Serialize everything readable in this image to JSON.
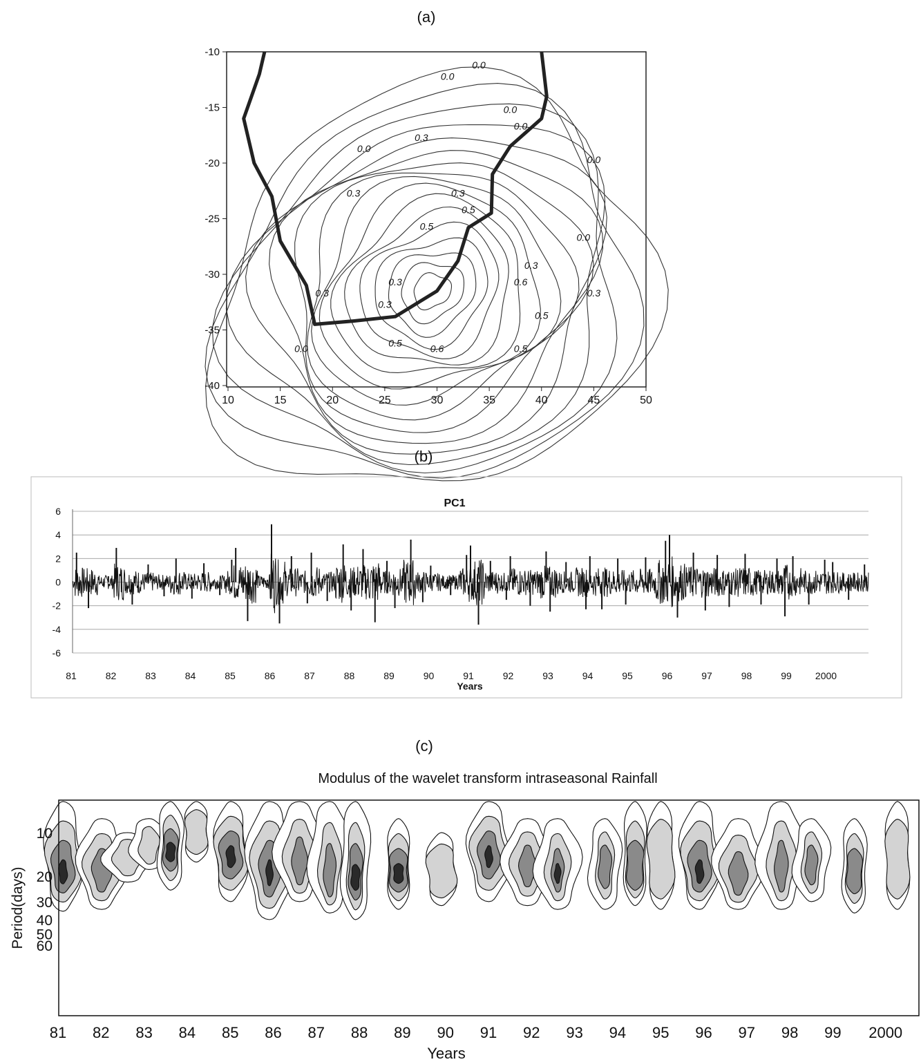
{
  "chart_data": [
    {
      "panel_label": "(a)",
      "type": "contour",
      "xlim": [
        10,
        50
      ],
      "ylim": [
        -40,
        -10
      ],
      "x_ticks": [
        "10",
        "15",
        "20",
        "25",
        "30",
        "35",
        "40",
        "45",
        "50"
      ],
      "y_ticks": [
        "-10",
        "-15",
        "-20",
        "-25",
        "-30",
        "-35",
        "-40"
      ],
      "contour_labels": [
        "0.0",
        "0.0",
        "0.0",
        "0.0",
        "0.0",
        "0.0",
        "0.0",
        "0.0",
        "0.3",
        "0.3",
        "0.3",
        "0.3",
        "0.3",
        "0.3",
        "0.3",
        "0.3",
        "0.5",
        "0.5",
        "0.5",
        "0.5",
        "0.6",
        "0.6",
        "0.5"
      ],
      "coastline": [
        [
          13.5,
          -10
        ],
        [
          13,
          -12
        ],
        [
          11.5,
          -16
        ],
        [
          12.5,
          -20
        ],
        [
          14.2,
          -23
        ],
        [
          15,
          -27
        ],
        [
          17.5,
          -31
        ],
        [
          18.3,
          -34.5
        ],
        [
          22,
          -34.2
        ],
        [
          26,
          -33.8
        ],
        [
          30,
          -31.5
        ],
        [
          32,
          -28.8
        ],
        [
          33,
          -25.8
        ],
        [
          35.2,
          -24.5
        ],
        [
          35.3,
          -21
        ],
        [
          37,
          -18.5
        ],
        [
          40,
          -16
        ],
        [
          40.5,
          -14
        ],
        [
          40,
          -10
        ]
      ],
      "peak_center": [
        29.5,
        -31.5
      ]
    },
    {
      "panel_label": "(b)",
      "type": "line",
      "title": "PC1",
      "xlabel": "Years",
      "ylim": [
        -6,
        6
      ],
      "y_ticks": [
        "6",
        "4",
        "2",
        "0",
        "-2",
        "-4",
        "-6"
      ],
      "x_ticks": [
        "81",
        "82",
        "83",
        "84",
        "85",
        "86",
        "87",
        "88",
        "89",
        "90",
        "91",
        "92",
        "93",
        "94",
        "95",
        "96",
        "97",
        "98",
        "99",
        "2000"
      ],
      "grid": true,
      "series": [
        {
          "x": [
            81.0,
            81.1,
            81.4,
            81.9,
            82.1,
            82.5,
            82.9,
            83.3,
            83.6,
            84.0,
            84.3,
            84.7,
            85.0,
            85.1,
            85.4,
            85.9,
            86.0,
            86.2,
            86.5,
            86.9,
            87.0,
            87.4,
            87.8,
            88.0,
            88.3,
            88.6,
            88.9,
            89.1,
            89.5,
            89.8,
            90.0,
            90.5,
            90.9,
            91.0,
            91.2,
            91.5,
            91.9,
            92.0,
            92.5,
            92.9,
            93.0,
            93.4,
            93.9,
            94.0,
            94.3,
            94.7,
            94.9,
            95.4,
            95.9,
            96.0,
            96.2,
            96.6,
            96.9,
            97.2,
            97.5,
            97.9,
            98.3,
            98.7,
            98.9,
            99.1,
            99.5,
            99.9,
            100.1,
            100.5,
            100.9
          ],
          "values": [
            0.0,
            2.5,
            -2.2,
            0.5,
            2.9,
            -1.9,
            1.5,
            -1.2,
            2.0,
            -1.4,
            1.6,
            -1.1,
            1.9,
            2.9,
            -3.3,
            0.2,
            4.9,
            -3.5,
            2.2,
            -1.8,
            2.5,
            -1.6,
            3.2,
            -2.4,
            2.8,
            -3.4,
            1.8,
            -2.2,
            3.6,
            -1.7,
            1.4,
            -1.1,
            2.3,
            3.1,
            -3.6,
            1.8,
            -1.5,
            2.2,
            -2.0,
            2.6,
            -2.5,
            1.7,
            -2.3,
            2.2,
            -2.3,
            2.0,
            -1.9,
            2.1,
            3.5,
            4.0,
            -3.0,
            2.5,
            -2.4,
            2.3,
            -2.1,
            2.4,
            -1.9,
            2.0,
            -2.9,
            2.2,
            -1.9,
            1.9,
            1.7,
            -1.5,
            1.5
          ]
        }
      ]
    },
    {
      "panel_label": "(c)",
      "type": "heatmap",
      "title": "Modulus of the wavelet transform intraseasonal Rainfall",
      "xlabel": "Years",
      "ylabel": "Period(days)",
      "x_ticks": [
        "81",
        "82",
        "83",
        "84",
        "85",
        "86",
        "87",
        "88",
        "89",
        "90",
        "91",
        "92",
        "93",
        "94",
        "95",
        "96",
        "97",
        "98",
        "99",
        "2000"
      ],
      "y_ticks": [
        "10",
        "20",
        "30",
        "40",
        "50",
        "60"
      ],
      "shading_levels": [
        "#ffffff",
        "#d3d3d3",
        "#8a8a8a",
        "#2a2a2a"
      ],
      "blobs": [
        {
          "year": 81.1,
          "period_center": 20,
          "period_top": 6,
          "period_bottom": 35,
          "level": 3
        },
        {
          "year": 82.0,
          "period_center": 20,
          "period_top": 8,
          "period_bottom": 34,
          "level": 2
        },
        {
          "year": 82.6,
          "period_center": 15,
          "period_top": 10,
          "period_bottom": 22,
          "level": 1
        },
        {
          "year": 83.1,
          "period_center": 13,
          "period_top": 8,
          "period_bottom": 18,
          "level": 1
        },
        {
          "year": 83.6,
          "period_center": 14,
          "period_top": 6,
          "period_bottom": 25,
          "level": 3
        },
        {
          "year": 84.2,
          "period_center": 10,
          "period_top": 5,
          "period_bottom": 16,
          "level": 1
        },
        {
          "year": 85.0,
          "period_center": 15,
          "period_top": 5,
          "period_bottom": 30,
          "level": 3
        },
        {
          "year": 85.9,
          "period_center": 20,
          "period_top": 5,
          "period_bottom": 40,
          "level": 3
        },
        {
          "year": 86.6,
          "period_center": 18,
          "period_top": 5,
          "period_bottom": 30,
          "level": 2
        },
        {
          "year": 87.3,
          "period_center": 22,
          "period_top": 6,
          "period_bottom": 36,
          "level": 2
        },
        {
          "year": 87.9,
          "period_center": 22,
          "period_top": 6,
          "period_bottom": 40,
          "level": 3
        },
        {
          "year": 88.9,
          "period_center": 20,
          "period_top": 8,
          "period_bottom": 34,
          "level": 3
        },
        {
          "year": 89.9,
          "period_center": 20,
          "period_top": 10,
          "period_bottom": 32,
          "level": 1
        },
        {
          "year": 91.0,
          "period_center": 15,
          "period_top": 5,
          "period_bottom": 30,
          "level": 3
        },
        {
          "year": 91.9,
          "period_center": 18,
          "period_top": 8,
          "period_bottom": 32,
          "level": 2
        },
        {
          "year": 92.6,
          "period_center": 20,
          "period_top": 8,
          "period_bottom": 34,
          "level": 3
        },
        {
          "year": 93.7,
          "period_center": 18,
          "period_top": 8,
          "period_bottom": 34,
          "level": 2
        },
        {
          "year": 94.4,
          "period_center": 20,
          "period_top": 6,
          "period_bottom": 32,
          "level": 2
        },
        {
          "year": 95.0,
          "period_center": 18,
          "period_top": 6,
          "period_bottom": 34,
          "level": 1
        },
        {
          "year": 95.9,
          "period_center": 20,
          "period_top": 5,
          "period_bottom": 34,
          "level": 3
        },
        {
          "year": 96.8,
          "period_center": 22,
          "period_top": 8,
          "period_bottom": 34,
          "level": 2
        },
        {
          "year": 97.8,
          "period_center": 20,
          "period_top": 6,
          "period_bottom": 34,
          "level": 2
        },
        {
          "year": 98.5,
          "period_center": 18,
          "period_top": 8,
          "period_bottom": 30,
          "level": 2
        },
        {
          "year": 99.5,
          "period_center": 20,
          "period_top": 8,
          "period_bottom": 36,
          "level": 2
        },
        {
          "year": 100.5,
          "period_center": 18,
          "period_top": 6,
          "period_bottom": 34,
          "level": 1
        }
      ]
    }
  ]
}
